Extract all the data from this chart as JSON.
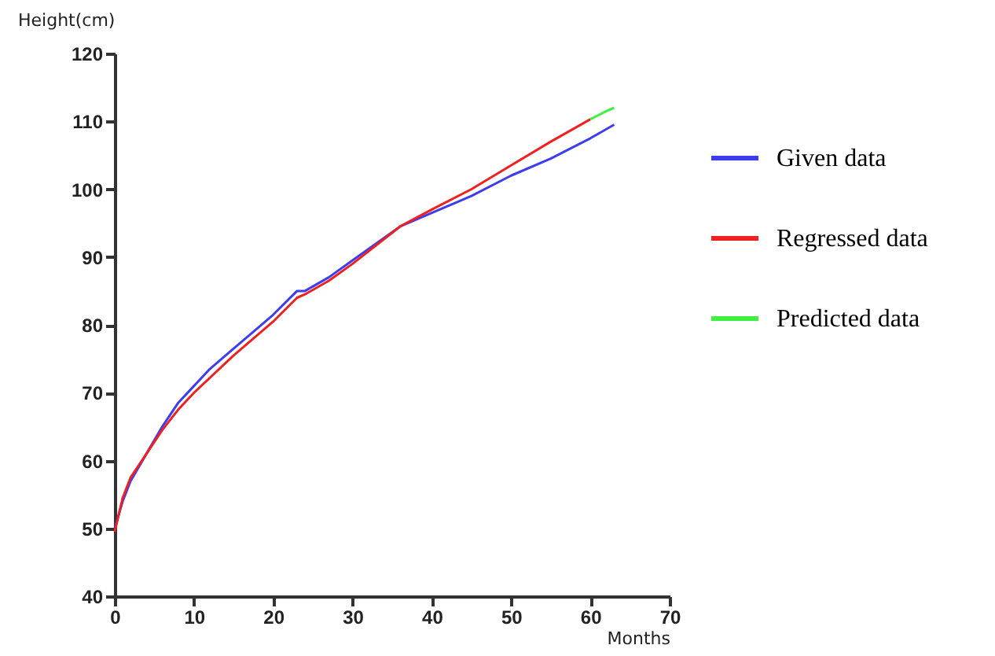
{
  "chart_data": {
    "type": "line",
    "xlabel": "Months",
    "ylabel": "Height(cm)",
    "xlim": [
      0,
      70
    ],
    "xticks": [
      0,
      10,
      20,
      30,
      40,
      50,
      60,
      70
    ],
    "ylim": [
      40,
      120
    ],
    "yticks": [
      40,
      50,
      60,
      70,
      80,
      90,
      100,
      110,
      120
    ],
    "grid": false,
    "legend": "right",
    "marker": "none",
    "line_style": "solid",
    "series": [
      {
        "name": "Given data",
        "color": "#3c3cf0",
        "x": [
          0,
          1,
          2,
          4,
          6,
          8,
          10,
          12,
          15,
          18,
          20,
          23,
          24,
          27,
          30,
          33,
          36,
          40,
          45,
          50,
          55,
          60,
          63
        ],
        "values": [
          50,
          54,
          57,
          61,
          65,
          68.5,
          71,
          73.5,
          76.5,
          79.5,
          81.5,
          85,
          85,
          87,
          89.5,
          92,
          94.5,
          96.5,
          99,
          102,
          104.5,
          107.5,
          109.5
        ]
      },
      {
        "name": "Regressed data",
        "color": "#f02020",
        "x": [
          0,
          1,
          2,
          4,
          6,
          8,
          10,
          15,
          20,
          23,
          24,
          27,
          30,
          36,
          40,
          45,
          50,
          55,
          60
        ],
        "values": [
          49.5,
          54.5,
          57.5,
          61,
          64.5,
          67.5,
          70,
          75.5,
          80.5,
          84,
          84.5,
          86.5,
          89,
          94.5,
          97,
          100,
          103.5,
          107,
          110.3
        ]
      },
      {
        "name": "Predicted data",
        "color": "#40f040",
        "x": [
          60,
          61,
          62,
          63
        ],
        "values": [
          110.3,
          110.9,
          111.5,
          112
        ]
      }
    ]
  }
}
